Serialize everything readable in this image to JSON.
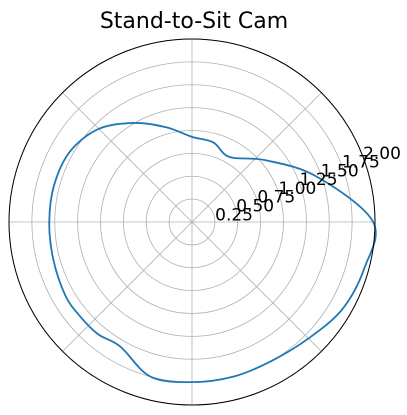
{
  "chart_data": {
    "type": "line",
    "projection": "polar",
    "title": "Stand-to-Sit Cam",
    "theta_unit": "degrees",
    "theta_zero": "east",
    "theta_direction": "counterclockwise",
    "rlim": [
      0,
      2.0
    ],
    "rticks": [
      0.25,
      0.5,
      0.75,
      1.0,
      1.25,
      1.5,
      1.75,
      2.0
    ],
    "rtick_labels": [
      "0.25",
      "0.50",
      "0.75",
      "1.00",
      "1.25",
      "1.50",
      "1.75",
      "2.00"
    ],
    "thetagrid_step_deg": 45,
    "grid": true,
    "line_color": "#1f77b4",
    "series": [
      {
        "theta": [
          0,
          20,
          40,
          60,
          75,
          90,
          105,
          120,
          135,
          150,
          165,
          180,
          195,
          210,
          220,
          230,
          240,
          255,
          270,
          285,
          300,
          315,
          330,
          345,
          360
        ],
        "r": [
          1.98,
          1.45,
          1.05,
          0.82,
          0.9,
          0.93,
          1.07,
          1.25,
          1.44,
          1.54,
          1.56,
          1.56,
          1.57,
          1.6,
          1.6,
          1.6,
          1.57,
          1.75,
          1.75,
          1.75,
          1.75,
          1.8,
          1.9,
          1.95,
          1.98
        ]
      }
    ]
  }
}
